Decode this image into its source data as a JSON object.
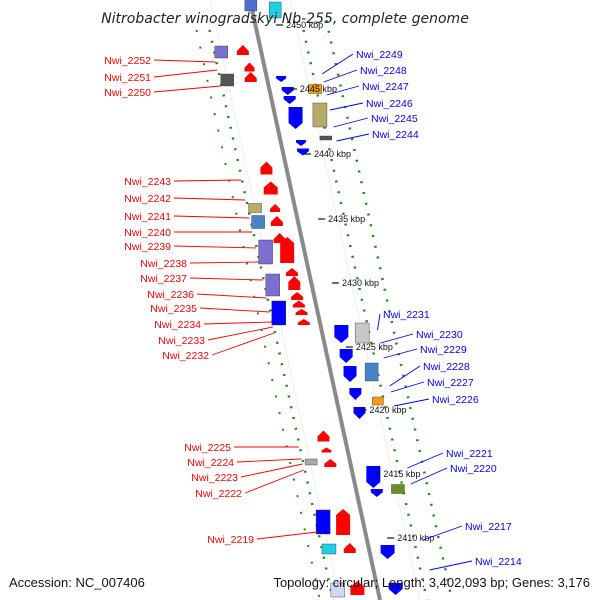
{
  "title": "Nitrobacter winogradskyi Nb-255, complete genome",
  "footer": {
    "accession": "Accession: NC_007406",
    "topology": "Topology: circular; Length: 3,402,093 bp; Genes: 3,176"
  },
  "colors": {
    "forward": "#ff0000",
    "reverse": "#0000ff",
    "backbone": "#8a8a8a",
    "ticks": "#1e8a1e"
  },
  "scale_labels": [
    "2450 kbp",
    "2445 kbp",
    "2440 kbp",
    "2435 kbp",
    "2430 kbp",
    "2425 kbp",
    "2420 kbp",
    "2415 kbp",
    "2410 kbp"
  ],
  "left_labels": [
    "Nwi_2252",
    "Nwi_2251",
    "Nwi_2250",
    "Nwi_2243",
    "Nwi_2242",
    "Nwi_2241",
    "Nwi_2240",
    "Nwi_2239",
    "Nwi_2238",
    "Nwi_2237",
    "Nwi_2236",
    "Nwi_2235",
    "Nwi_2234",
    "Nwi_2233",
    "Nwi_2232",
    "Nwi_2225",
    "Nwi_2224",
    "Nwi_2223",
    "Nwi_2222",
    "Nwi_2219"
  ],
  "right_labels": [
    "Nwi_2249",
    "Nwi_2248",
    "Nwi_2247",
    "Nwi_2246",
    "Nwi_2245",
    "Nwi_2244",
    "Nwi_2231",
    "Nwi_2230",
    "Nwi_2229",
    "Nwi_2228",
    "Nwi_2227",
    "Nwi_2226",
    "Nwi_2221",
    "Nwi_2220",
    "Nwi_2217",
    "Nwi_2214"
  ]
}
